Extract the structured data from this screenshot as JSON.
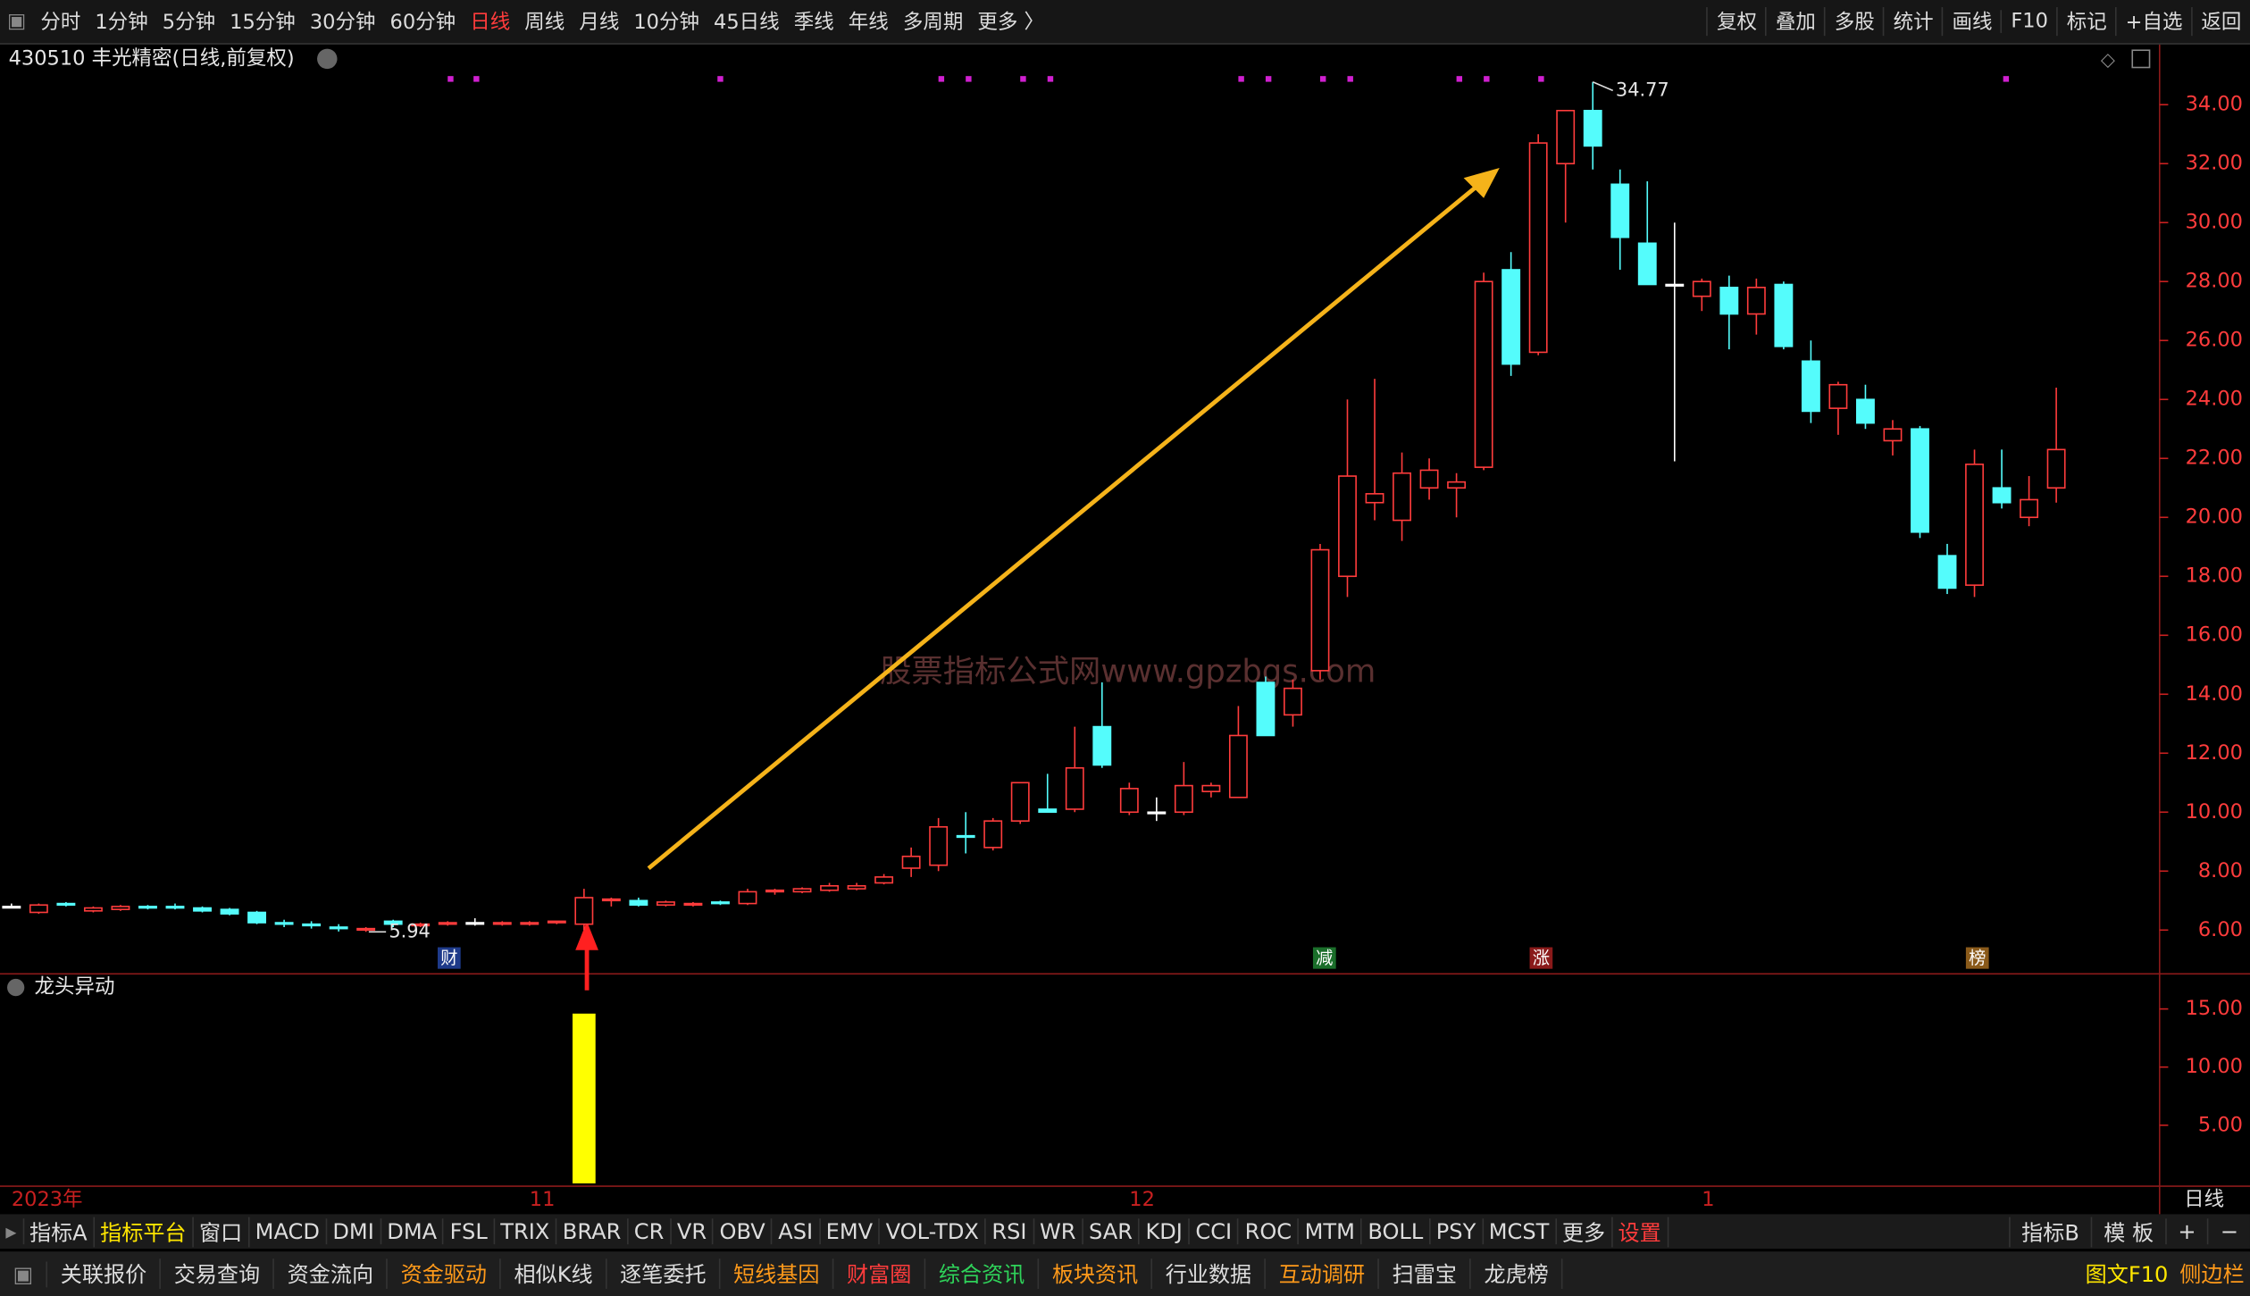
{
  "ui": {
    "top_tabs": [
      "分时",
      "1分钟",
      "5分钟",
      "15分钟",
      "30分钟",
      "60分钟",
      "日线",
      "周线",
      "月线",
      "10分钟",
      "45日线",
      "季线",
      "年线",
      "多周期",
      "更多 〉"
    ],
    "top_right": [
      "复权",
      "叠加",
      "多股",
      "统计",
      "画线",
      "F10",
      "标记",
      "+自选",
      "返回"
    ],
    "indicator_tabs": [
      "指标A",
      "指标平台",
      "窗口",
      "MACD",
      "DMI",
      "DMA",
      "FSL",
      "TRIX",
      "BRAR",
      "CR",
      "VR",
      "OBV",
      "ASI",
      "EMV",
      "VOL-TDX",
      "RSI",
      "WR",
      "SAR",
      "KDJ",
      "CCI",
      "ROC",
      "MTM",
      "BOLL",
      "PSY",
      "MCST",
      "更多",
      "设置"
    ],
    "indicator_right": [
      "指标B",
      "模 板",
      "+",
      "−"
    ],
    "bottom_tabs": [
      "关联报价",
      "交易查询",
      "资金流向",
      "资金驱动",
      "相似K线",
      "逐笔委托",
      "短线基因",
      "财富圈",
      "综合资讯",
      "板块资讯",
      "行业数据",
      "互动调研",
      "扫雷宝",
      "龙虎榜"
    ],
    "bottom_right": [
      "图文F10",
      "侧边栏"
    ],
    "badges": [
      "财",
      "减",
      "涨",
      "榜"
    ],
    "watermark": "股票指标公式网www.gpzbgs.com",
    "axis_period": "日线"
  },
  "chart_data": [
    {
      "type": "candlestick",
      "title": "430510 丰光精密(日线,前复权)",
      "categories": [
        "2023年",
        null,
        null,
        null,
        null,
        null,
        null,
        null,
        null,
        null,
        null,
        null,
        null,
        null,
        null,
        null,
        null,
        null,
        null,
        "11",
        null,
        null,
        null,
        null,
        null,
        null,
        null,
        null,
        null,
        null,
        null,
        null,
        null,
        null,
        null,
        null,
        null,
        null,
        null,
        null,
        null,
        "12",
        null,
        null,
        null,
        null,
        null,
        null,
        null,
        null,
        null,
        null,
        null,
        null,
        null,
        null,
        null,
        null,
        null,
        null,
        null,
        null,
        "1",
        null,
        null,
        null,
        null,
        null,
        null,
        null,
        null,
        null,
        null,
        null,
        null,
        null
      ],
      "open": [
        6.8,
        6.6,
        6.9,
        6.65,
        6.7,
        6.8,
        6.8,
        6.75,
        6.7,
        6.6,
        6.25,
        6.2,
        6.1,
        6.0,
        6.3,
        6.15,
        6.2,
        6.25,
        6.2,
        6.2,
        6.25,
        6.2,
        7.0,
        7.0,
        6.85,
        6.85,
        6.95,
        6.9,
        7.3,
        7.3,
        7.35,
        7.4,
        7.6,
        8.1,
        8.2,
        9.2,
        8.8,
        9.7,
        10.1,
        10.1,
        12.9,
        10.0,
        10.0,
        10.0,
        10.7,
        10.5,
        14.4,
        13.3,
        14.8,
        18.0,
        20.5,
        19.9,
        21.0,
        21.0,
        21.7,
        28.4,
        25.6,
        32.0,
        33.8,
        31.3,
        29.3,
        27.9,
        27.5,
        27.8,
        26.9,
        27.9,
        25.3,
        23.7,
        24.0,
        22.6,
        23.0,
        18.7,
        17.7,
        21.0,
        20.0,
        21.0
      ],
      "high": [
        6.9,
        6.9,
        6.95,
        6.8,
        6.85,
        6.85,
        6.9,
        6.8,
        6.75,
        6.65,
        6.35,
        6.3,
        6.2,
        6.1,
        6.35,
        6.25,
        6.3,
        6.4,
        6.3,
        6.3,
        6.3,
        7.4,
        7.1,
        7.1,
        7.0,
        6.95,
        7.0,
        7.4,
        7.4,
        7.45,
        7.6,
        7.6,
        7.9,
        8.8,
        9.8,
        10.0,
        9.8,
        11.0,
        11.3,
        12.9,
        14.4,
        11.0,
        10.5,
        11.7,
        11.0,
        13.6,
        14.6,
        14.5,
        19.1,
        24.0,
        24.7,
        22.2,
        22.0,
        21.5,
        28.3,
        29.0,
        33.0,
        33.8,
        34.77,
        31.8,
        31.4,
        30.0,
        28.1,
        28.2,
        28.1,
        28.0,
        26.0,
        24.6,
        24.5,
        23.3,
        23.1,
        19.1,
        22.3,
        22.3,
        21.4,
        24.4
      ],
      "low": [
        6.75,
        6.55,
        6.8,
        6.6,
        6.65,
        6.7,
        6.7,
        6.6,
        6.5,
        6.2,
        6.1,
        6.05,
        5.95,
        5.94,
        6.1,
        6.1,
        6.15,
        6.15,
        6.15,
        6.15,
        6.2,
        6.0,
        6.8,
        6.8,
        6.8,
        6.8,
        6.85,
        6.85,
        7.2,
        7.25,
        7.3,
        7.35,
        7.55,
        7.8,
        8.0,
        8.6,
        8.7,
        9.6,
        10.0,
        10.0,
        11.5,
        9.9,
        9.7,
        9.9,
        10.5,
        10.5,
        12.6,
        12.9,
        14.5,
        17.3,
        19.9,
        19.2,
        20.6,
        20.0,
        21.6,
        24.8,
        25.5,
        30.0,
        31.8,
        28.4,
        27.9,
        21.9,
        27.0,
        25.7,
        26.2,
        25.7,
        23.2,
        22.8,
        23.0,
        22.1,
        19.3,
        17.4,
        17.3,
        20.3,
        19.7,
        20.5
      ],
      "close": [
        6.8,
        6.85,
        6.85,
        6.75,
        6.8,
        6.75,
        6.75,
        6.65,
        6.55,
        6.25,
        6.2,
        6.15,
        6.05,
        6.05,
        6.2,
        6.2,
        6.25,
        6.25,
        6.25,
        6.25,
        6.3,
        7.1,
        7.05,
        6.85,
        6.95,
        6.9,
        6.9,
        7.3,
        7.35,
        7.4,
        7.5,
        7.5,
        7.8,
        8.5,
        9.5,
        9.15,
        9.7,
        11.0,
        10.0,
        11.5,
        11.6,
        10.8,
        10.0,
        10.9,
        10.9,
        12.6,
        12.6,
        14.2,
        18.9,
        21.4,
        20.8,
        21.5,
        21.6,
        21.2,
        28.0,
        25.2,
        32.7,
        33.8,
        32.6,
        29.5,
        27.9,
        27.9,
        28.0,
        26.9,
        27.8,
        25.8,
        23.6,
        24.5,
        23.2,
        23.0,
        19.5,
        17.6,
        21.8,
        20.5,
        20.6,
        22.3
      ],
      "up_color": "#ff3c3c",
      "down_color": "#54fcfc",
      "flat_color": "#ffffff",
      "ylim": [
        4.54,
        36.09
      ],
      "yticks": [
        {
          "value": 6,
          "label": "6.00"
        },
        {
          "value": 8,
          "label": "8.00"
        },
        {
          "value": 10,
          "label": "10.00"
        },
        {
          "value": 12,
          "label": "12.00"
        },
        {
          "value": 14,
          "label": "14.00"
        },
        {
          "value": 16,
          "label": "16.00"
        },
        {
          "value": 18,
          "label": "18.00"
        },
        {
          "value": 20,
          "label": "20.00"
        },
        {
          "value": 22,
          "label": "22.00"
        },
        {
          "value": 24,
          "label": "24.00"
        },
        {
          "value": 26,
          "label": "26.00"
        },
        {
          "value": 28,
          "label": "28.00"
        },
        {
          "value": 30,
          "label": "30.00"
        },
        {
          "value": 32,
          "label": "32.00"
        },
        {
          "value": 34,
          "label": "34.00"
        }
      ],
      "grid": false
    },
    {
      "type": "bar",
      "title": "龙头异动",
      "color": "#ffff00",
      "values": [
        null,
        null,
        null,
        null,
        null,
        null,
        null,
        null,
        null,
        null,
        null,
        null,
        null,
        null,
        null,
        null,
        null,
        null,
        null,
        null,
        null,
        14.6,
        null,
        null,
        null,
        null,
        null,
        null,
        null,
        null,
        null,
        null,
        null,
        null,
        null,
        null,
        null,
        null,
        null,
        null,
        null,
        null,
        null,
        null,
        null,
        null,
        null,
        null,
        null,
        null,
        null,
        null,
        null,
        null,
        null,
        null,
        null,
        null,
        null,
        null,
        null,
        null,
        null,
        null,
        null,
        null,
        null,
        null,
        null,
        null,
        null,
        null,
        null,
        null,
        null,
        null
      ],
      "ylim": [
        0,
        17.96
      ],
      "yticks": [
        {
          "value": 5,
          "label": "5.00"
        },
        {
          "value": 10,
          "label": "10.00"
        },
        {
          "value": 15,
          "label": "15.00"
        }
      ],
      "grid": false
    }
  ]
}
